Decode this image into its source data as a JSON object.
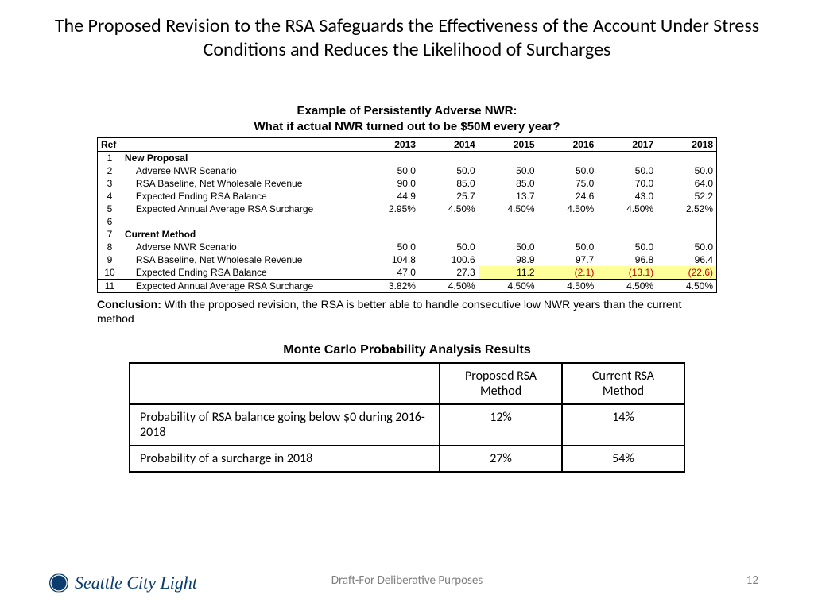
{
  "title": "The Proposed Revision to the RSA Safeguards the Effectiveness of the Account Under Stress Conditions and Reduces the Likelihood of Surcharges",
  "example_title_line1": "Example of Persistently Adverse NWR:",
  "example_title_line2": "What if actual NWR turned out to be $50M every year?",
  "t1": {
    "header_ref": "Ref",
    "years": [
      "2013",
      "2014",
      "2015",
      "2016",
      "2017",
      "2018"
    ],
    "rows": [
      {
        "ref": "1",
        "label": "New Proposal",
        "type": "section"
      },
      {
        "ref": "2",
        "label": "Adverse NWR Scenario",
        "type": "data",
        "vals": [
          "50.0",
          "50.0",
          "50.0",
          "50.0",
          "50.0",
          "50.0"
        ]
      },
      {
        "ref": "3",
        "label": "RSA Baseline, Net Wholesale Revenue",
        "type": "data",
        "vals": [
          "90.0",
          "85.0",
          "85.0",
          "75.0",
          "70.0",
          "64.0"
        ]
      },
      {
        "ref": "4",
        "label": "Expected Ending RSA Balance",
        "type": "data",
        "vals": [
          "44.9",
          "25.7",
          "13.7",
          "24.6",
          "43.0",
          "52.2"
        ]
      },
      {
        "ref": "5",
        "label": "Expected Annual Average RSA Surcharge",
        "type": "data",
        "vals": [
          "2.95%",
          "4.50%",
          "4.50%",
          "4.50%",
          "4.50%",
          "2.52%"
        ]
      },
      {
        "ref": "6",
        "label": "",
        "type": "blank"
      },
      {
        "ref": "7",
        "label": "Current Method",
        "type": "section"
      },
      {
        "ref": "8",
        "label": "Adverse NWR Scenario",
        "type": "data",
        "vals": [
          "50.0",
          "50.0",
          "50.0",
          "50.0",
          "50.0",
          "50.0"
        ]
      },
      {
        "ref": "9",
        "label": "RSA Baseline, Net Wholesale Revenue",
        "type": "data",
        "vals": [
          "104.8",
          "100.6",
          "98.9",
          "97.7",
          "96.8",
          "96.4"
        ]
      },
      {
        "ref": "10",
        "label": "Expected Ending RSA Balance",
        "type": "data",
        "vals": [
          "47.0",
          "27.3",
          "11.2",
          "(2.1)",
          "(13.1)",
          "(22.6)"
        ],
        "neg_from": 3,
        "highlight": true
      },
      {
        "ref": "11",
        "label": "Expected Annual Average RSA Surcharge",
        "type": "data",
        "vals": [
          "3.82%",
          "4.50%",
          "4.50%",
          "4.50%",
          "4.50%",
          "4.50%"
        ],
        "last": true
      }
    ]
  },
  "conclusion_label": "Conclusion:",
  "conclusion_text": " With the proposed revision, the RSA is better able to handle consecutive low NWR years than the current method",
  "mc_title": "Monte Carlo Probability Analysis Results",
  "t2": {
    "head1": "Proposed RSA Method",
    "head2": "Current RSA Method",
    "rows": [
      {
        "label": "Probability of RSA balance going below $0 during 2016-2018",
        "v1": "12%",
        "v2": "14%"
      },
      {
        "label": "Probability of a surcharge in 2018",
        "v1": "27%",
        "v2": "54%"
      }
    ]
  },
  "footer": {
    "org": "Seattle City Light",
    "draft": "Draft-For Deliberative Purposes",
    "page": "12"
  },
  "colors": {
    "negative": "#c00000",
    "highlight": "#ffff99",
    "logo": "#0b3c6e",
    "footer_text": "#808080"
  }
}
